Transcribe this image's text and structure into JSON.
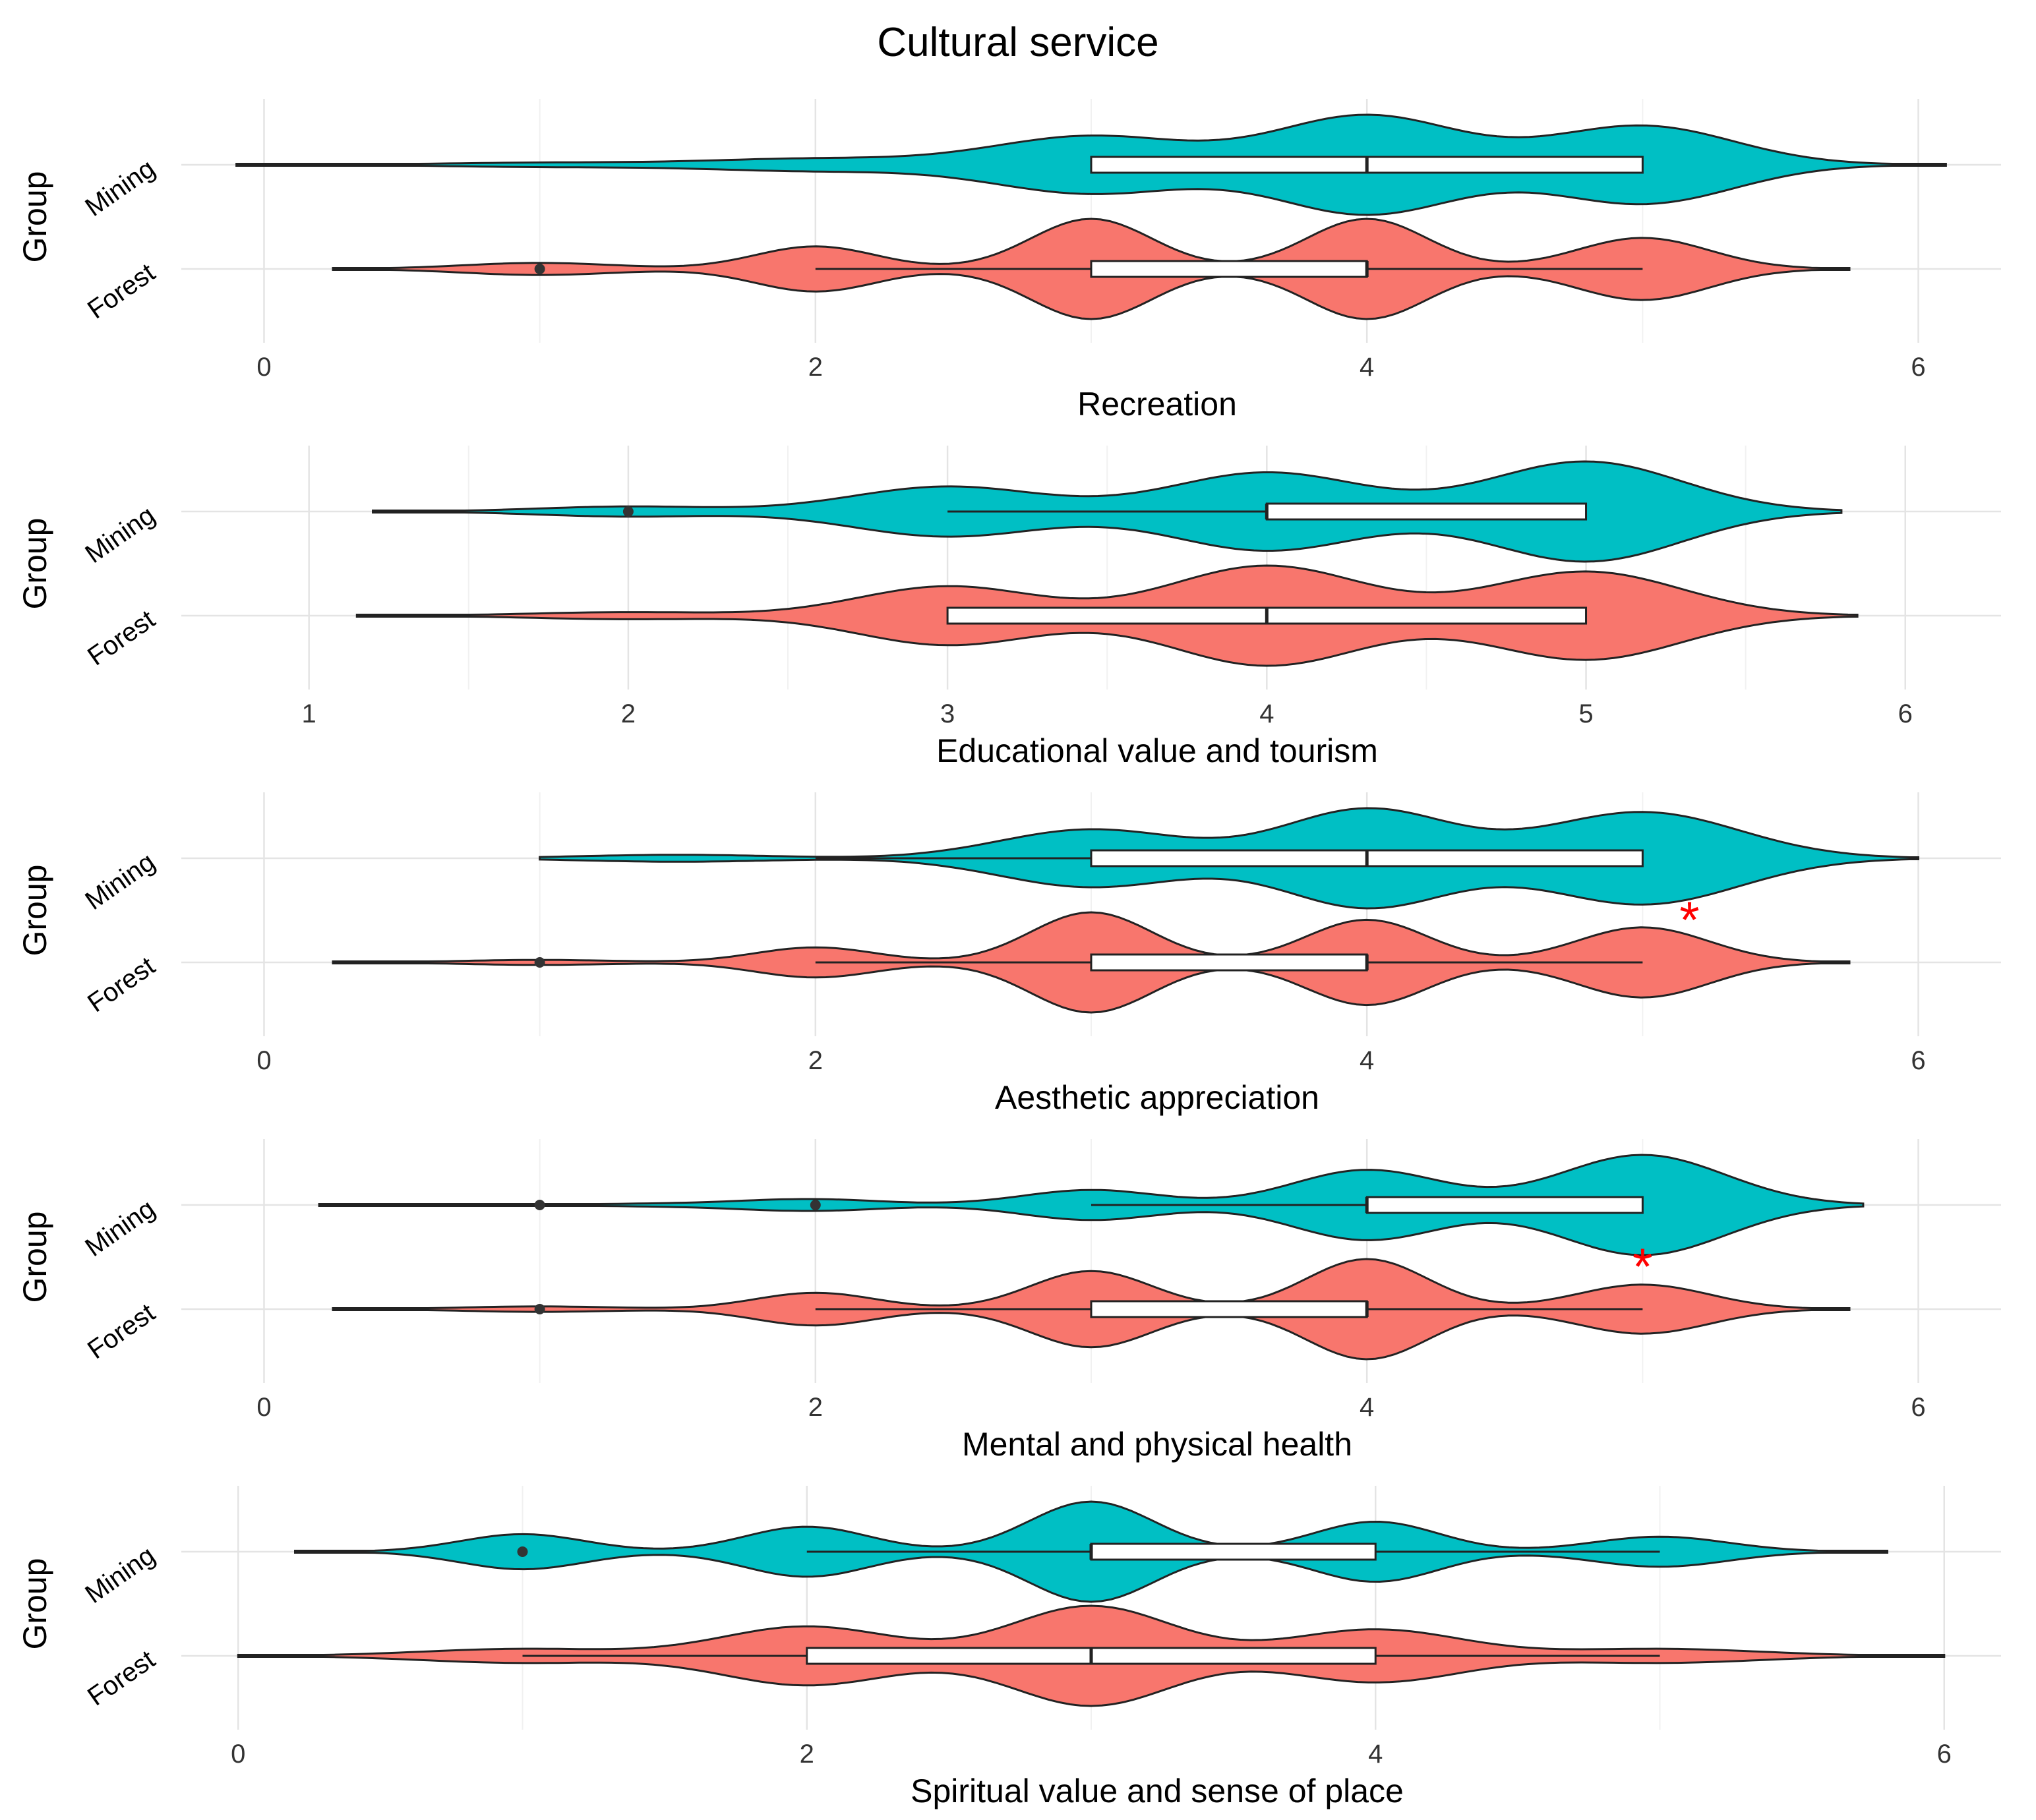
{
  "chart_data": {
    "type": "violin",
    "title": "Cultural service",
    "ylabel": "Group",
    "groups": [
      "Mining",
      "Forest"
    ],
    "colors": {
      "Mining": "#00BFC4",
      "Forest": "#F8766D",
      "box": "#ffffff",
      "outline": "#222222",
      "significance": "#ff0000"
    },
    "panels": [
      {
        "xlabel": "Recreation",
        "xlim": [
          -0.3,
          6.3
        ],
        "ticks": [
          0,
          2,
          4,
          6
        ],
        "tick_labels": [
          "0",
          "2",
          "4",
          "6"
        ],
        "series": [
          {
            "name": "Mining",
            "range": [
              -0.1,
              6.1
            ],
            "bumps": [
              [
                1,
                0.04,
                0.35
              ],
              [
                2,
                0.12,
                0.4
              ],
              [
                3,
                0.55,
                0.35
              ],
              [
                4,
                0.95,
                0.33
              ],
              [
                5,
                0.75,
                0.33
              ]
            ],
            "box": {
              "q1": 3,
              "median": 4,
              "q3": 5,
              "whisker_low": 3,
              "whisker_high": 5
            },
            "outliers": []
          },
          {
            "name": "Forest",
            "range": [
              0.25,
              5.75
            ],
            "bumps": [
              [
                1,
                0.12,
                0.28
              ],
              [
                2,
                0.45,
                0.22
              ],
              [
                3,
                1.0,
                0.22
              ],
              [
                4,
                1.0,
                0.22
              ],
              [
                5,
                0.62,
                0.24
              ]
            ],
            "box": {
              "q1": 3,
              "median": 4,
              "q3": 4,
              "whisker_low": 2,
              "whisker_high": 5
            },
            "outliers": [
              1
            ]
          }
        ],
        "significant": false
      },
      {
        "xlabel": "Educational value and tourism",
        "xlim": [
          0.6,
          6.3
        ],
        "ticks": [
          1,
          2,
          3,
          4,
          5,
          6
        ],
        "tick_labels": [
          "1",
          "2",
          "3",
          "4",
          "5",
          "6"
        ],
        "series": [
          {
            "name": "Mining",
            "range": [
              1.2,
              5.8
            ],
            "bumps": [
              [
                2,
                0.1,
                0.28
              ],
              [
                3,
                0.5,
                0.3
              ],
              [
                4,
                0.78,
                0.3
              ],
              [
                5,
                1.0,
                0.3
              ]
            ],
            "box": {
              "q1": 4,
              "median": 4,
              "q3": 5,
              "whisker_low": 3,
              "whisker_high": 5
            },
            "outliers": [
              2
            ]
          },
          {
            "name": "Forest",
            "range": [
              1.15,
              5.85
            ],
            "bumps": [
              [
                2,
                0.06,
                0.3
              ],
              [
                3,
                0.5,
                0.28
              ],
              [
                4,
                0.85,
                0.3
              ],
              [
                5,
                0.75,
                0.3
              ]
            ],
            "box": {
              "q1": 3,
              "median": 4,
              "q3": 5,
              "whisker_low": 3,
              "whisker_high": 5
            },
            "outliers": []
          }
        ],
        "significant": false
      },
      {
        "xlabel": "Aesthetic appreciation",
        "xlim": [
          -0.3,
          6.3
        ],
        "ticks": [
          0,
          2,
          4,
          6
        ],
        "tick_labels": [
          "0",
          "2",
          "4",
          "6"
        ],
        "series": [
          {
            "name": "Mining",
            "range": [
              1.0,
              6.0
            ],
            "bumps": [
              [
                1.5,
                0.06,
                0.35
              ],
              [
                3,
                0.5,
                0.33
              ],
              [
                4,
                0.85,
                0.3
              ],
              [
                5,
                0.8,
                0.35
              ]
            ],
            "box": {
              "q1": 3,
              "median": 4,
              "q3": 5,
              "whisker_low": 2,
              "whisker_high": 5
            },
            "outliers": []
          },
          {
            "name": "Forest",
            "range": [
              0.25,
              5.75
            ],
            "bumps": [
              [
                1,
                0.05,
                0.28
              ],
              [
                2,
                0.3,
                0.22
              ],
              [
                3,
                1.0,
                0.22
              ],
              [
                4,
                0.85,
                0.22
              ],
              [
                5,
                0.7,
                0.24
              ]
            ],
            "box": {
              "q1": 3,
              "median": 4,
              "q3": 4,
              "whisker_low": 2,
              "whisker_high": 5
            },
            "outliers": [
              1
            ]
          }
        ],
        "significant": true,
        "marker": {
          "symbol": "*",
          "x": 5.17,
          "group": "Mining"
        }
      },
      {
        "xlabel": "Mental and physical health",
        "xlim": [
          -0.3,
          6.3
        ],
        "ticks": [
          0,
          2,
          4,
          6
        ],
        "tick_labels": [
          "0",
          "2",
          "4",
          "6"
        ],
        "series": [
          {
            "name": "Mining",
            "range": [
              0.2,
              5.8
            ],
            "bumps": [
              [
                1.6,
                0.03,
                0.4
              ],
              [
                2,
                0.1,
                0.25
              ],
              [
                3,
                0.3,
                0.25
              ],
              [
                4,
                0.7,
                0.27
              ],
              [
                5,
                1.0,
                0.3
              ]
            ],
            "box": {
              "q1": 4,
              "median": 4,
              "q3": 5,
              "whisker_low": 3,
              "whisker_high": 5
            },
            "outliers": [
              1,
              2
            ]
          },
          {
            "name": "Forest",
            "range": [
              0.25,
              5.75
            ],
            "bumps": [
              [
                1,
                0.05,
                0.28
              ],
              [
                2,
                0.3,
                0.22
              ],
              [
                3,
                0.7,
                0.22
              ],
              [
                4,
                0.92,
                0.22
              ],
              [
                5,
                0.45,
                0.24
              ]
            ],
            "box": {
              "q1": 3,
              "median": 4,
              "q3": 4,
              "whisker_low": 2,
              "whisker_high": 5
            },
            "outliers": [
              1
            ]
          }
        ],
        "significant": true,
        "marker": {
          "symbol": "*",
          "x": 5.0,
          "group": "Mining"
        }
      },
      {
        "xlabel": "Spiritual value and sense of place",
        "xlim": [
          -0.2,
          6.2
        ],
        "ticks": [
          0,
          2,
          4,
          6
        ],
        "tick_labels": [
          "0",
          "2",
          "4",
          "6"
        ],
        "series": [
          {
            "name": "Mining",
            "range": [
              0.2,
              5.8
            ],
            "bumps": [
              [
                1,
                0.35,
                0.22
              ],
              [
                2,
                0.5,
                0.22
              ],
              [
                3,
                1.0,
                0.22
              ],
              [
                4,
                0.6,
                0.22
              ],
              [
                5,
                0.3,
                0.24
              ]
            ],
            "box": {
              "q1": 3,
              "median": 3,
              "q3": 4,
              "whisker_low": 2,
              "whisker_high": 5
            },
            "outliers": [
              1
            ]
          },
          {
            "name": "Forest",
            "range": [
              0.0,
              6.0
            ],
            "bumps": [
              [
                1,
                0.12,
                0.35
              ],
              [
                2,
                0.5,
                0.3
              ],
              [
                3,
                0.85,
                0.28
              ],
              [
                4,
                0.45,
                0.3
              ],
              [
                5,
                0.12,
                0.35
              ]
            ],
            "box": {
              "q1": 2,
              "median": 3,
              "q3": 4,
              "whisker_low": 1,
              "whisker_high": 5
            },
            "outliers": []
          }
        ],
        "significant": false
      }
    ]
  }
}
